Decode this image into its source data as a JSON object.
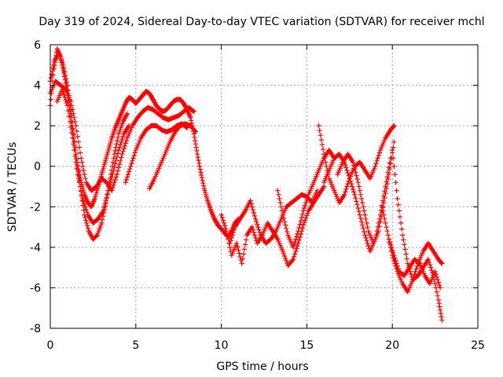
{
  "chart_data": {
    "type": "scatter",
    "title": "Day 319 of 2024, Sidereal Day-to-day VTEC variation (SDTVAR) for receiver mchl",
    "xlabel": "GPS time / hours",
    "ylabel": "SDTVAR / TECUs",
    "xlim": [
      0,
      25
    ],
    "ylim": [
      -8,
      6
    ],
    "xticks": [
      0,
      5,
      10,
      15,
      20,
      25
    ],
    "yticks": [
      -8,
      -6,
      -4,
      -2,
      0,
      2,
      4,
      6
    ],
    "grid": true,
    "marker": "+",
    "color": "#ff0000",
    "series": [
      {
        "name": "sat-track-1",
        "x": [
          0.0,
          0.2,
          0.4,
          0.6,
          0.8,
          1.0,
          1.2,
          1.4,
          1.6,
          1.8,
          2.0,
          2.2,
          2.4,
          2.6,
          2.8,
          3.0,
          3.2,
          3.4,
          3.6,
          3.8,
          4.0,
          4.2,
          4.4,
          4.6,
          4.8,
          5.0,
          5.2,
          5.4,
          5.6,
          5.8,
          6.0,
          6.2,
          6.4,
          6.6,
          6.8,
          7.0,
          7.2,
          7.4,
          7.6,
          7.8,
          8.0,
          8.2,
          8.4,
          8.6,
          8.8,
          9.0,
          9.2,
          9.4,
          9.6,
          9.8,
          10.0,
          10.2,
          10.4,
          10.6,
          10.8,
          11.0
        ],
        "y": [
          3.0,
          4.8,
          5.8,
          5.4,
          4.6,
          3.6,
          2.4,
          1.2,
          0.0,
          -0.8,
          -1.4,
          -1.8,
          -2.0,
          -1.6,
          -1.0,
          -0.4,
          0.2,
          0.8,
          1.4,
          1.9,
          2.3,
          2.7,
          3.1,
          3.4,
          3.3,
          3.1,
          3.3,
          3.5,
          3.7,
          3.6,
          3.3,
          3.0,
          2.8,
          2.7,
          2.8,
          3.0,
          3.2,
          3.3,
          3.3,
          3.1,
          2.8,
          2.4,
          1.6,
          0.6,
          -0.3,
          -1.1,
          -1.7,
          -2.2,
          -2.6,
          -2.9,
          -3.1,
          -3.3,
          -3.5,
          -3.2,
          -2.8,
          -2.6
        ]
      },
      {
        "name": "sat-track-2",
        "x": [
          0.0,
          0.3,
          0.6,
          0.9,
          1.2,
          1.5,
          1.8,
          2.1,
          2.4,
          2.7,
          3.0,
          3.3,
          3.6,
          3.9,
          4.2,
          4.5,
          4.8,
          5.1,
          5.4,
          5.7,
          6.0,
          6.3,
          6.6,
          6.9,
          7.2,
          7.5,
          7.8,
          8.1,
          8.4
        ],
        "y": [
          3.6,
          4.2,
          4.0,
          3.8,
          3.2,
          2.0,
          0.4,
          -0.8,
          -1.2,
          -1.0,
          -0.6,
          -0.8,
          -1.2,
          -0.4,
          0.6,
          1.4,
          2.0,
          2.4,
          2.7,
          2.9,
          2.8,
          2.6,
          2.4,
          2.3,
          2.4,
          2.5,
          2.7,
          2.9,
          2.7
        ]
      },
      {
        "name": "sat-track-3",
        "x": [
          0.0,
          0.25,
          0.5,
          0.75,
          1.0,
          1.25,
          1.5,
          1.75,
          2.0,
          2.25,
          2.5,
          2.75,
          3.0,
          3.25,
          3.5,
          3.75,
          4.0,
          4.25,
          4.5
        ],
        "y": [
          4.2,
          5.2,
          5.6,
          5.0,
          4.0,
          2.5,
          0.6,
          -1.0,
          -2.4,
          -3.2,
          -3.6,
          -3.4,
          -2.8,
          -1.8,
          -0.6,
          0.6,
          1.6,
          2.2,
          2.6
        ]
      },
      {
        "name": "sat-track-4",
        "x": [
          0.4,
          0.7,
          1.0,
          1.3,
          1.6,
          1.9,
          2.2,
          2.5,
          2.8,
          3.1,
          3.4,
          3.7,
          4.0,
          4.3,
          4.6
        ],
        "y": [
          3.2,
          3.8,
          3.0,
          1.4,
          -0.4,
          -1.6,
          -2.4,
          -2.8,
          -2.6,
          -2.2,
          -1.2,
          -0.2,
          0.8,
          1.6,
          2.0
        ]
      },
      {
        "name": "sat-track-5",
        "x": [
          5.8,
          6.1,
          6.4,
          6.7,
          7.0,
          7.3,
          7.6,
          7.9,
          8.2,
          8.5
        ],
        "y": [
          -1.1,
          -0.6,
          0.0,
          0.6,
          1.2,
          1.7,
          2.0,
          2.1,
          2.0,
          1.7
        ]
      },
      {
        "name": "sat-track-6",
        "x": [
          4.4,
          4.7,
          5.0,
          5.3,
          5.6,
          5.9,
          6.2,
          6.5,
          6.8,
          7.1,
          7.4,
          7.7,
          8.0
        ],
        "y": [
          -0.8,
          0.0,
          0.8,
          1.4,
          1.8,
          2.0,
          2.0,
          1.8,
          1.7,
          1.8,
          2.0,
          2.1,
          1.9
        ]
      },
      {
        "name": "sat-track-7",
        "x": [
          10.0,
          10.3,
          10.6,
          10.9,
          11.2,
          11.5,
          11.8,
          12.1,
          12.4,
          12.7,
          13.0,
          13.3,
          13.6,
          13.9,
          14.2,
          14.5,
          14.8,
          15.1,
          15.4,
          15.7,
          16.0
        ],
        "y": [
          -2.4,
          -3.2,
          -4.4,
          -3.8,
          -4.8,
          -3.4,
          -3.0,
          -3.8,
          -3.4,
          -2.8,
          -3.2,
          -3.6,
          -4.2,
          -4.9,
          -4.6,
          -3.8,
          -2.9,
          -2.2,
          -1.8,
          -1.4,
          -1.0
        ]
      },
      {
        "name": "sat-track-8",
        "x": [
          10.5,
          10.8,
          11.1,
          11.4,
          11.7,
          12.0,
          12.3,
          12.6,
          12.9,
          13.2,
          13.5,
          13.8,
          14.1,
          14.4,
          14.7,
          15.0,
          15.3,
          15.6
        ],
        "y": [
          -3.8,
          -3.0,
          -2.6,
          -2.2,
          -1.7,
          -2.6,
          -3.4,
          -3.8,
          -3.6,
          -3.2,
          -2.6,
          -2.0,
          -1.8,
          -1.6,
          -1.4,
          -1.5,
          -1.8,
          -1.2
        ]
      },
      {
        "name": "sat-track-9",
        "x": [
          13.3,
          13.6,
          13.9,
          14.2,
          14.5,
          14.8,
          15.1,
          15.4,
          15.7,
          16.0,
          16.3,
          16.6
        ],
        "y": [
          -1.2,
          -2.4,
          -3.4,
          -4.0,
          -3.2,
          -2.2,
          -1.4,
          -0.8,
          -0.2,
          0.4,
          0.8,
          0.4
        ]
      },
      {
        "name": "sat-track-10",
        "x": [
          15.7,
          16.0,
          16.3,
          16.6,
          16.9,
          17.2,
          17.5,
          17.8,
          18.1,
          18.4,
          18.7,
          19.0,
          19.3,
          19.6,
          19.9,
          20.1
        ],
        "y": [
          2.0,
          0.6,
          -0.6,
          -1.2,
          -1.8,
          -1.4,
          -0.6,
          0.0,
          0.2,
          -0.2,
          -0.6,
          0.0,
          0.8,
          1.4,
          1.8,
          2.0
        ]
      },
      {
        "name": "sat-track-11",
        "x": [
          16.0,
          16.3,
          16.6,
          16.9,
          17.2,
          17.5,
          17.8,
          18.1,
          18.4,
          18.7,
          19.0,
          19.3,
          19.6,
          19.9
        ],
        "y": [
          -0.8,
          -0.2,
          0.4,
          0.6,
          0.2,
          -0.6,
          -1.4,
          -2.4,
          -3.4,
          -4.2,
          -3.6,
          -2.4,
          -1.0,
          0.4
        ]
      },
      {
        "name": "sat-track-12",
        "x": [
          16.8,
          17.1,
          17.4,
          17.7,
          18.0,
          18.3,
          18.6,
          18.9,
          19.2,
          19.5,
          19.8,
          20.1
        ],
        "y": [
          -0.4,
          0.2,
          0.6,
          0.2,
          -0.8,
          -2.0,
          -3.2,
          -3.8,
          -3.2,
          -1.8,
          -0.4,
          1.2
        ]
      },
      {
        "name": "sat-track-13",
        "x": [
          19.4,
          19.7,
          20.0,
          20.3,
          20.6,
          20.9,
          21.2,
          21.5,
          21.8,
          22.1,
          22.4,
          22.7,
          22.9
        ],
        "y": [
          -2.0,
          -3.2,
          -4.4,
          -5.2,
          -5.8,
          -6.2,
          -5.6,
          -4.8,
          -4.2,
          -3.8,
          -4.2,
          -4.6,
          -4.8
        ]
      },
      {
        "name": "sat-track-14",
        "x": [
          20.0,
          20.3,
          20.6,
          20.9,
          21.2,
          21.5,
          21.8,
          22.1,
          22.4,
          22.7,
          22.9
        ],
        "y": [
          0.8,
          -1.6,
          -3.4,
          -4.8,
          -5.6,
          -5.4,
          -5.0,
          -4.6,
          -5.4,
          -6.6,
          -7.6
        ]
      },
      {
        "name": "sat-track-15",
        "x": [
          19.8,
          20.1,
          20.4,
          20.7,
          21.0,
          21.3,
          21.6,
          21.9,
          22.2,
          22.5,
          22.8
        ],
        "y": [
          -3.6,
          -4.4,
          -5.2,
          -5.4,
          -5.0,
          -4.6,
          -4.8,
          -5.4,
          -5.8,
          -5.2,
          -6.0
        ]
      }
    ]
  }
}
